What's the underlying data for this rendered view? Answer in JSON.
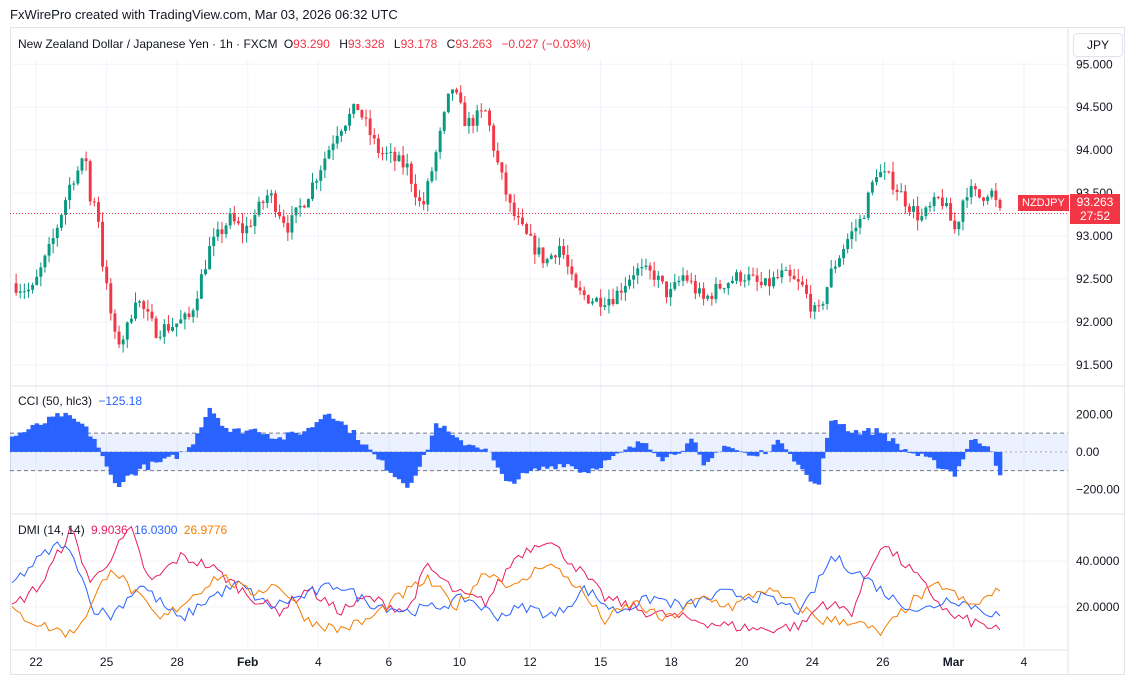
{
  "header": {
    "creator_line": "FxWirePro created with TradingView.com, Mar 03, 2026 06:32 UTC"
  },
  "main_pane": {
    "symbol": "New Zealand Dollar / Japanese Yen · 1h · FXCM",
    "o_label": "O",
    "o_value": "93.290",
    "h_label": "H",
    "h_value": "93.328",
    "l_label": "L",
    "l_value": "93.178",
    "c_label": "C",
    "c_value": "93.263",
    "change": "−0.027 (−0.03%)",
    "currency_button": "JPY",
    "ticker_tag": "NZDJPY",
    "last_price": "93.263",
    "countdown": "27:52"
  },
  "cci_pane": {
    "name": "CCI (50, hlc3)",
    "value": "−125.18"
  },
  "dmi_pane": {
    "name": "DMI (14, 14)",
    "value1": "9.9036",
    "value2": "16.0300",
    "value3": "26.9776"
  },
  "colors": {
    "up": "#089981",
    "down": "#f23645",
    "cci": "#2962ff",
    "dmi_minus": "#e91e63",
    "dmi_plus": "#2962ff",
    "adx": "#f57c00"
  },
  "chart_data": [
    {
      "type": "candlestick",
      "title": "New Zealand Dollar / Japanese Yen · 1h · FXCM",
      "x_ticks": [
        "22",
        "25",
        "28",
        "Feb",
        "4",
        "6",
        "10",
        "12",
        "15",
        "18",
        "20",
        "24",
        "26",
        "Mar",
        "4"
      ],
      "y_ticks": [
        "95.000",
        "94.500",
        "94.000",
        "93.500",
        "93.000",
        "92.500",
        "92.000",
        "91.500"
      ],
      "ylim": [
        91.3,
        95.05
      ],
      "last": 93.263,
      "path_anchors": [
        {
          "x": 0,
          "y": 92.45
        },
        {
          "x": 0.02,
          "y": 92.35
        },
        {
          "x": 0.04,
          "y": 92.9
        },
        {
          "x": 0.06,
          "y": 93.65
        },
        {
          "x": 0.075,
          "y": 93.9
        },
        {
          "x": 0.08,
          "y": 93.3
        },
        {
          "x": 0.085,
          "y": 93.5
        },
        {
          "x": 0.092,
          "y": 92.65
        },
        {
          "x": 0.105,
          "y": 91.75
        },
        {
          "x": 0.115,
          "y": 91.85
        },
        {
          "x": 0.125,
          "y": 92.3
        },
        {
          "x": 0.145,
          "y": 91.9
        },
        {
          "x": 0.16,
          "y": 91.95
        },
        {
          "x": 0.18,
          "y": 92.05
        },
        {
          "x": 0.2,
          "y": 92.85
        },
        {
          "x": 0.22,
          "y": 93.2
        },
        {
          "x": 0.235,
          "y": 93.05
        },
        {
          "x": 0.26,
          "y": 93.5
        },
        {
          "x": 0.28,
          "y": 93.1
        },
        {
          "x": 0.3,
          "y": 93.5
        },
        {
          "x": 0.33,
          "y": 94.25
        },
        {
          "x": 0.35,
          "y": 94.5
        },
        {
          "x": 0.37,
          "y": 94.0
        },
        {
          "x": 0.4,
          "y": 93.8
        },
        {
          "x": 0.415,
          "y": 93.3
        },
        {
          "x": 0.43,
          "y": 94.0
        },
        {
          "x": 0.445,
          "y": 94.75
        },
        {
          "x": 0.46,
          "y": 94.3
        },
        {
          "x": 0.48,
          "y": 94.45
        },
        {
          "x": 0.49,
          "y": 93.9
        },
        {
          "x": 0.505,
          "y": 93.3
        },
        {
          "x": 0.52,
          "y": 93.0
        },
        {
          "x": 0.54,
          "y": 92.7
        },
        {
          "x": 0.555,
          "y": 92.9
        },
        {
          "x": 0.57,
          "y": 92.35
        },
        {
          "x": 0.59,
          "y": 92.25
        },
        {
          "x": 0.61,
          "y": 92.3
        },
        {
          "x": 0.63,
          "y": 92.6
        },
        {
          "x": 0.65,
          "y": 92.55
        },
        {
          "x": 0.665,
          "y": 92.3
        },
        {
          "x": 0.68,
          "y": 92.55
        },
        {
          "x": 0.7,
          "y": 92.25
        },
        {
          "x": 0.72,
          "y": 92.45
        },
        {
          "x": 0.74,
          "y": 92.55
        },
        {
          "x": 0.76,
          "y": 92.4
        },
        {
          "x": 0.78,
          "y": 92.55
        },
        {
          "x": 0.8,
          "y": 92.4
        },
        {
          "x": 0.815,
          "y": 92.05
        },
        {
          "x": 0.83,
          "y": 92.6
        },
        {
          "x": 0.845,
          "y": 92.95
        },
        {
          "x": 0.86,
          "y": 93.2
        },
        {
          "x": 0.875,
          "y": 93.75
        },
        {
          "x": 0.89,
          "y": 93.65
        },
        {
          "x": 0.905,
          "y": 93.4
        },
        {
          "x": 0.92,
          "y": 93.2
        },
        {
          "x": 0.94,
          "y": 93.45
        },
        {
          "x": 0.955,
          "y": 93.05
        },
        {
          "x": 0.965,
          "y": 93.55
        },
        {
          "x": 0.98,
          "y": 93.45
        },
        {
          "x": 0.99,
          "y": 93.55
        },
        {
          "x": 1,
          "y": 93.26
        }
      ]
    },
    {
      "type": "bar",
      "title": "CCI (50, hlc3)",
      "y_ticks": [
        "200.00",
        "0.00",
        "−200.00"
      ],
      "ylim": [
        -300,
        320
      ],
      "band": [
        -100,
        100
      ],
      "last": -125.18,
      "path_anchors": [
        {
          "x": 0,
          "y": 80
        },
        {
          "x": 0.03,
          "y": 150
        },
        {
          "x": 0.05,
          "y": 200
        },
        {
          "x": 0.07,
          "y": 150
        },
        {
          "x": 0.085,
          "y": 60
        },
        {
          "x": 0.095,
          "y": -80
        },
        {
          "x": 0.105,
          "y": -180
        },
        {
          "x": 0.13,
          "y": -90
        },
        {
          "x": 0.16,
          "y": -40
        },
        {
          "x": 0.18,
          "y": 20
        },
        {
          "x": 0.2,
          "y": 240
        },
        {
          "x": 0.22,
          "y": 110
        },
        {
          "x": 0.25,
          "y": 120
        },
        {
          "x": 0.27,
          "y": 70
        },
        {
          "x": 0.3,
          "y": 120
        },
        {
          "x": 0.32,
          "y": 220
        },
        {
          "x": 0.35,
          "y": 80
        },
        {
          "x": 0.37,
          "y": -40
        },
        {
          "x": 0.4,
          "y": -180
        },
        {
          "x": 0.415,
          "y": -60
        },
        {
          "x": 0.43,
          "y": 160
        },
        {
          "x": 0.45,
          "y": 60
        },
        {
          "x": 0.48,
          "y": 20
        },
        {
          "x": 0.5,
          "y": -170
        },
        {
          "x": 0.53,
          "y": -100
        },
        {
          "x": 0.56,
          "y": -60
        },
        {
          "x": 0.58,
          "y": -110
        },
        {
          "x": 0.61,
          "y": -30
        },
        {
          "x": 0.64,
          "y": 60
        },
        {
          "x": 0.66,
          "y": -40
        },
        {
          "x": 0.69,
          "y": 60
        },
        {
          "x": 0.7,
          "y": -90
        },
        {
          "x": 0.72,
          "y": 40
        },
        {
          "x": 0.75,
          "y": -30
        },
        {
          "x": 0.78,
          "y": 60
        },
        {
          "x": 0.8,
          "y": -100
        },
        {
          "x": 0.815,
          "y": -200
        },
        {
          "x": 0.83,
          "y": 190
        },
        {
          "x": 0.85,
          "y": 110
        },
        {
          "x": 0.88,
          "y": 110
        },
        {
          "x": 0.9,
          "y": 20
        },
        {
          "x": 0.93,
          "y": -50
        },
        {
          "x": 0.955,
          "y": -120
        },
        {
          "x": 0.97,
          "y": 60
        },
        {
          "x": 0.99,
          "y": 40
        },
        {
          "x": 1,
          "y": -125
        }
      ]
    },
    {
      "type": "line",
      "title": "DMI (14, 14)",
      "y_ticks": [
        "40.0000",
        "20.0000"
      ],
      "ylim": [
        2,
        58
      ],
      "series": [
        {
          "color_ref": "dmi_minus",
          "last": 9.9036,
          "anchors": [
            {
              "x": 0,
              "y": 20
            },
            {
              "x": 0.03,
              "y": 30
            },
            {
              "x": 0.06,
              "y": 54
            },
            {
              "x": 0.08,
              "y": 30
            },
            {
              "x": 0.1,
              "y": 42
            },
            {
              "x": 0.12,
              "y": 54
            },
            {
              "x": 0.14,
              "y": 30
            },
            {
              "x": 0.17,
              "y": 42
            },
            {
              "x": 0.2,
              "y": 38
            },
            {
              "x": 0.24,
              "y": 25
            },
            {
              "x": 0.27,
              "y": 18
            },
            {
              "x": 0.3,
              "y": 28
            },
            {
              "x": 0.33,
              "y": 18
            },
            {
              "x": 0.36,
              "y": 24
            },
            {
              "x": 0.4,
              "y": 18
            },
            {
              "x": 0.42,
              "y": 38
            },
            {
              "x": 0.45,
              "y": 26
            },
            {
              "x": 0.48,
              "y": 22
            },
            {
              "x": 0.51,
              "y": 42
            },
            {
              "x": 0.54,
              "y": 50
            },
            {
              "x": 0.57,
              "y": 38
            },
            {
              "x": 0.6,
              "y": 24
            },
            {
              "x": 0.64,
              "y": 18
            },
            {
              "x": 0.68,
              "y": 15
            },
            {
              "x": 0.72,
              "y": 12
            },
            {
              "x": 0.76,
              "y": 10
            },
            {
              "x": 0.8,
              "y": 12
            },
            {
              "x": 0.82,
              "y": 22
            },
            {
              "x": 0.85,
              "y": 18
            },
            {
              "x": 0.88,
              "y": 48
            },
            {
              "x": 0.91,
              "y": 36
            },
            {
              "x": 0.95,
              "y": 16
            },
            {
              "x": 1,
              "y": 10
            }
          ]
        },
        {
          "color_ref": "dmi_plus",
          "last": 16.03,
          "anchors": [
            {
              "x": 0,
              "y": 30
            },
            {
              "x": 0.03,
              "y": 42
            },
            {
              "x": 0.05,
              "y": 48
            },
            {
              "x": 0.07,
              "y": 36
            },
            {
              "x": 0.08,
              "y": 20
            },
            {
              "x": 0.1,
              "y": 16
            },
            {
              "x": 0.13,
              "y": 30
            },
            {
              "x": 0.15,
              "y": 22
            },
            {
              "x": 0.17,
              "y": 14
            },
            {
              "x": 0.2,
              "y": 24
            },
            {
              "x": 0.23,
              "y": 30
            },
            {
              "x": 0.26,
              "y": 20
            },
            {
              "x": 0.29,
              "y": 24
            },
            {
              "x": 0.33,
              "y": 30
            },
            {
              "x": 0.36,
              "y": 22
            },
            {
              "x": 0.4,
              "y": 18
            },
            {
              "x": 0.43,
              "y": 20
            },
            {
              "x": 0.46,
              "y": 24
            },
            {
              "x": 0.49,
              "y": 16
            },
            {
              "x": 0.52,
              "y": 20
            },
            {
              "x": 0.55,
              "y": 16
            },
            {
              "x": 0.58,
              "y": 28
            },
            {
              "x": 0.61,
              "y": 18
            },
            {
              "x": 0.65,
              "y": 24
            },
            {
              "x": 0.68,
              "y": 20
            },
            {
              "x": 0.72,
              "y": 26
            },
            {
              "x": 0.76,
              "y": 24
            },
            {
              "x": 0.8,
              "y": 18
            },
            {
              "x": 0.83,
              "y": 42
            },
            {
              "x": 0.86,
              "y": 34
            },
            {
              "x": 0.89,
              "y": 24
            },
            {
              "x": 0.92,
              "y": 18
            },
            {
              "x": 0.95,
              "y": 24
            },
            {
              "x": 1,
              "y": 16
            }
          ]
        },
        {
          "color_ref": "adx",
          "last": 26.9776,
          "anchors": [
            {
              "x": 0,
              "y": 18
            },
            {
              "x": 0.03,
              "y": 12
            },
            {
              "x": 0.06,
              "y": 8
            },
            {
              "x": 0.08,
              "y": 20
            },
            {
              "x": 0.1,
              "y": 38
            },
            {
              "x": 0.12,
              "y": 28
            },
            {
              "x": 0.15,
              "y": 14
            },
            {
              "x": 0.18,
              "y": 24
            },
            {
              "x": 0.21,
              "y": 34
            },
            {
              "x": 0.24,
              "y": 26
            },
            {
              "x": 0.27,
              "y": 30
            },
            {
              "x": 0.3,
              "y": 14
            },
            {
              "x": 0.33,
              "y": 10
            },
            {
              "x": 0.36,
              "y": 14
            },
            {
              "x": 0.39,
              "y": 24
            },
            {
              "x": 0.42,
              "y": 32
            },
            {
              "x": 0.45,
              "y": 20
            },
            {
              "x": 0.48,
              "y": 36
            },
            {
              "x": 0.51,
              "y": 28
            },
            {
              "x": 0.54,
              "y": 40
            },
            {
              "x": 0.57,
              "y": 30
            },
            {
              "x": 0.6,
              "y": 14
            },
            {
              "x": 0.63,
              "y": 22
            },
            {
              "x": 0.66,
              "y": 14
            },
            {
              "x": 0.7,
              "y": 24
            },
            {
              "x": 0.73,
              "y": 20
            },
            {
              "x": 0.76,
              "y": 28
            },
            {
              "x": 0.79,
              "y": 22
            },
            {
              "x": 0.82,
              "y": 14
            },
            {
              "x": 0.85,
              "y": 14
            },
            {
              "x": 0.88,
              "y": 8
            },
            {
              "x": 0.91,
              "y": 22
            },
            {
              "x": 0.94,
              "y": 30
            },
            {
              "x": 0.97,
              "y": 20
            },
            {
              "x": 1,
              "y": 27
            }
          ]
        }
      ]
    }
  ]
}
